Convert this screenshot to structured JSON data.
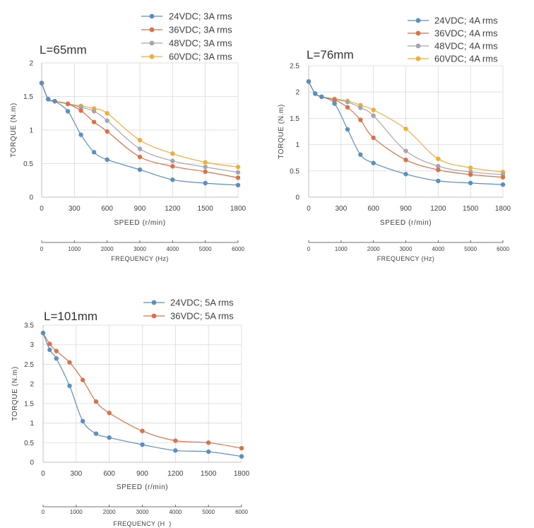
{
  "chart_data": [
    {
      "type": "line",
      "title": "L=65mm",
      "xlabel": "SPEED (r/min)",
      "ylabel": "TORQUE (N.m)",
      "x_ticks": [
        "0",
        "300",
        "600",
        "900",
        "1200",
        "1500",
        "1800"
      ],
      "y_ticks": [
        "0",
        "0.5",
        "1",
        "1.5",
        "2"
      ],
      "xlim": [
        0,
        1800
      ],
      "ylim": [
        0,
        2
      ],
      "freq_label": "FREQUENCY (Hz)",
      "freq_ticks": [
        "0",
        "1000",
        "2000",
        "3000",
        "4000",
        "5000",
        "6000"
      ],
      "x": [
        0,
        60,
        120,
        240,
        360,
        480,
        600,
        900,
        1200,
        1500,
        1800
      ],
      "series": [
        {
          "name": "24VDC; 3A rms",
          "color": "#5b8fc0",
          "values": [
            1.7,
            1.46,
            1.43,
            1.28,
            0.93,
            0.67,
            0.56,
            0.41,
            0.26,
            0.21,
            0.18
          ]
        },
        {
          "name": "36VDC; 3A rms",
          "color": "#d9714a",
          "values": [
            1.7,
            1.46,
            1.43,
            1.39,
            1.29,
            1.12,
            0.98,
            0.6,
            0.46,
            0.38,
            0.29
          ]
        },
        {
          "name": "48VDC; 3A rms",
          "color": "#a5a5ad",
          "values": [
            1.7,
            1.46,
            1.43,
            1.39,
            1.34,
            1.28,
            1.14,
            0.72,
            0.54,
            0.45,
            0.37
          ]
        },
        {
          "name": "60VDC; 3A rms",
          "color": "#f0ad3c",
          "values": [
            1.7,
            1.46,
            1.43,
            1.39,
            1.36,
            1.32,
            1.25,
            0.85,
            0.65,
            0.52,
            0.45
          ]
        }
      ]
    },
    {
      "type": "line",
      "title": "L=76mm",
      "xlabel": "SPEED (r/min)",
      "ylabel": "TORQUE (N.m)",
      "x_ticks": [
        "0",
        "300",
        "600",
        "900",
        "1200",
        "1500",
        "1800"
      ],
      "y_ticks": [
        "0",
        "0.5",
        "1",
        "1.5",
        "2",
        "2.5"
      ],
      "xlim": [
        0,
        1800
      ],
      "ylim": [
        0,
        2.5
      ],
      "freq_label": "FREQUENCY (Hz)",
      "freq_ticks": [
        "0",
        "1000",
        "2000",
        "3000",
        "4000",
        "5000",
        "6000"
      ],
      "x": [
        0,
        60,
        120,
        240,
        360,
        480,
        600,
        900,
        1200,
        1500,
        1800
      ],
      "series": [
        {
          "name": "24VDC; 4A rms",
          "color": "#5b8fc0",
          "values": [
            2.2,
            1.97,
            1.91,
            1.78,
            1.29,
            0.81,
            0.65,
            0.44,
            0.31,
            0.27,
            0.24
          ]
        },
        {
          "name": "36VDC; 4A rms",
          "color": "#d9714a",
          "values": [
            2.2,
            1.97,
            1.91,
            1.85,
            1.71,
            1.47,
            1.13,
            0.71,
            0.52,
            0.43,
            0.38
          ]
        },
        {
          "name": "48VDC; 4A rms",
          "color": "#a5a5ad",
          "values": [
            2.2,
            1.97,
            1.91,
            1.86,
            1.81,
            1.7,
            1.55,
            0.88,
            0.59,
            0.48,
            0.43
          ]
        },
        {
          "name": "60VDC; 4A rms",
          "color": "#f0ad3c",
          "values": [
            2.2,
            1.97,
            1.91,
            1.87,
            1.83,
            1.75,
            1.66,
            1.3,
            0.73,
            0.56,
            0.48
          ]
        }
      ]
    },
    {
      "type": "line",
      "title": "L=101mm",
      "xlabel": "SPEED (r/min)",
      "ylabel": "TORQUE (N.m)",
      "x_ticks": [
        "0",
        "300",
        "600",
        "900",
        "1200",
        "1500",
        "1800"
      ],
      "y_ticks": [
        "0",
        "0.5",
        "1",
        "1.5",
        "2",
        "2.5",
        "3",
        "3.5"
      ],
      "xlim": [
        0,
        1800
      ],
      "ylim": [
        0,
        3.5
      ],
      "freq_label": "FREQUENCY (H  )",
      "freq_ticks": [
        "0",
        "1000",
        "2000",
        "3000",
        "4000",
        "5000",
        "6000"
      ],
      "x": [
        0,
        60,
        120,
        240,
        360,
        480,
        600,
        900,
        1200,
        1500,
        1800
      ],
      "series": [
        {
          "name": "24VDC; 5A rms",
          "color": "#5b8fc0",
          "values": [
            3.3,
            2.87,
            2.65,
            1.95,
            1.05,
            0.73,
            0.63,
            0.45,
            0.3,
            0.27,
            0.15
          ]
        },
        {
          "name": "36VDC; 5A rms",
          "color": "#d9714a",
          "values": [
            3.3,
            3.02,
            2.84,
            2.55,
            2.1,
            1.55,
            1.26,
            0.8,
            0.55,
            0.5,
            0.36
          ]
        }
      ]
    }
  ]
}
